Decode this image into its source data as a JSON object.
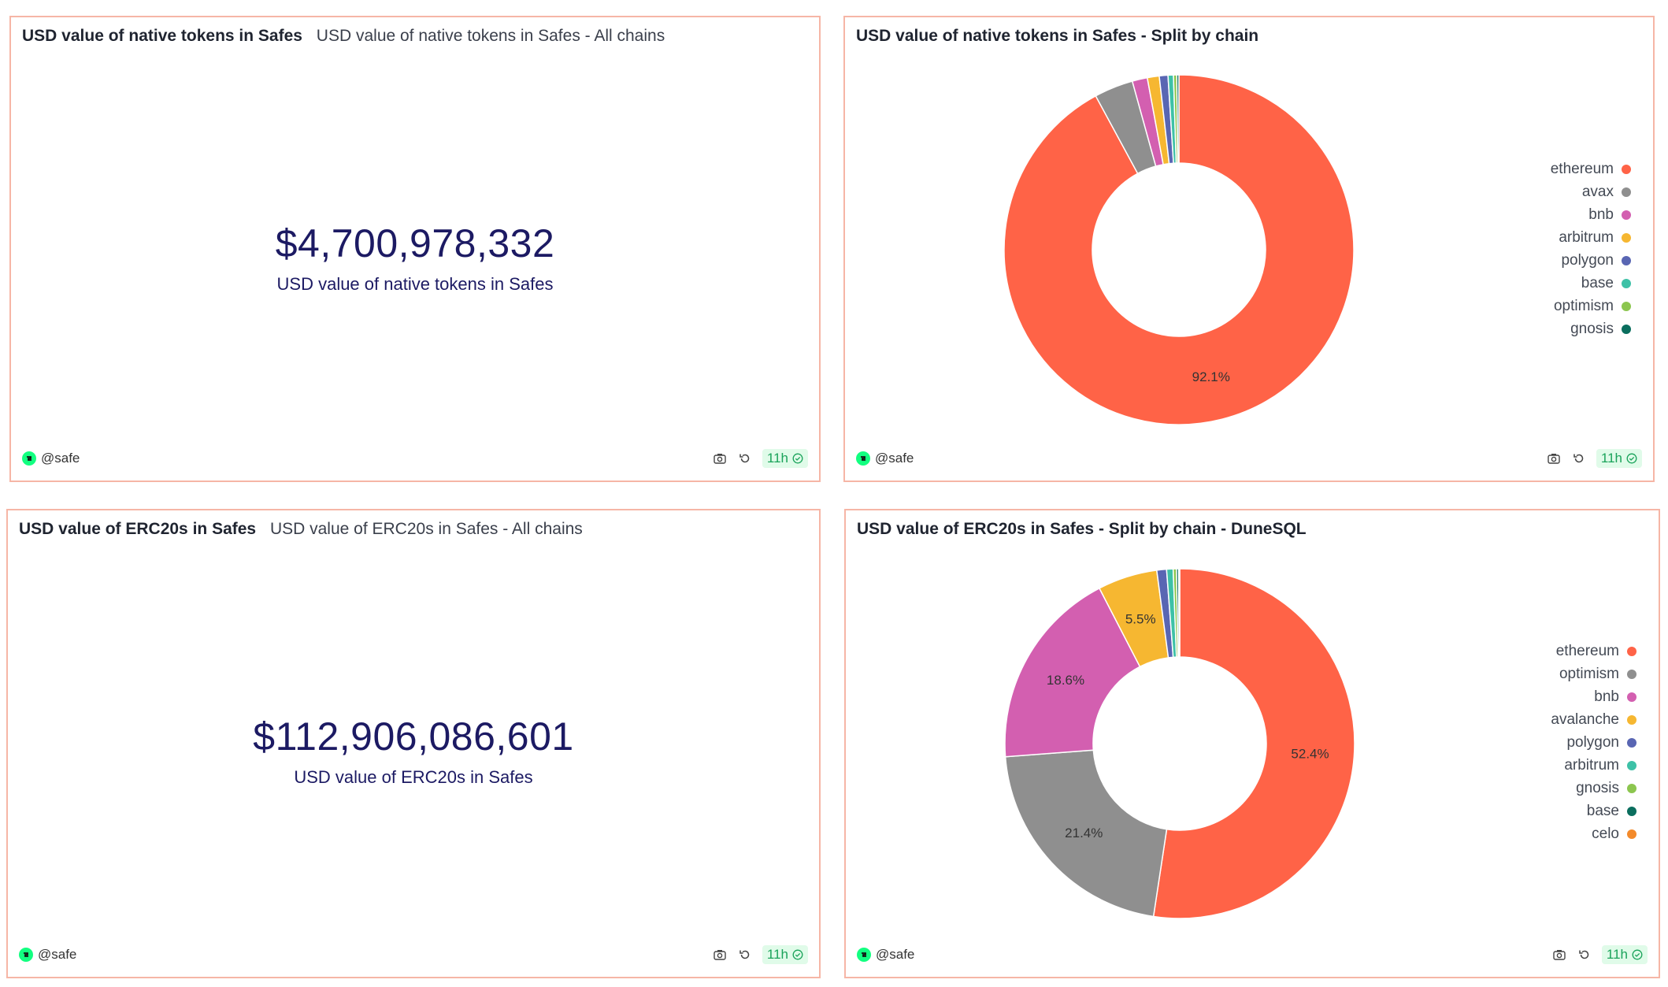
{
  "owner": "@safe",
  "freshness": "11h",
  "panels": {
    "native_counter": {
      "title": "USD value of native tokens in Safes",
      "subtitle": "USD value of native tokens in Safes - All chains",
      "value": "$4,700,978,332",
      "label": "USD value of native tokens in Safes"
    },
    "native_pie": {
      "title": "USD value of native tokens in Safes - Split by chain"
    },
    "erc20_counter": {
      "title": "USD value of ERC20s in Safes",
      "subtitle": "USD value of ERC20s in Safes - All chains",
      "value": "$112,906,086,601",
      "label": "USD value of ERC20s in Safes"
    },
    "erc20_pie": {
      "title": "USD value of ERC20s in Safes - Split by chain - DuneSQL"
    }
  },
  "colors": {
    "ethereum": "#ff6347",
    "gray": "#8f8f8f",
    "pink": "#d35fb0",
    "amber": "#f6b731",
    "indigo": "#5966b3",
    "teal": "#3ec1a7",
    "lime": "#8cc64f",
    "darkteal": "#0b6e5e",
    "orange": "#f38a2b",
    "border": "#f6b6a6",
    "counter_text": "#1c1a63",
    "fresh": "#1aa35a"
  },
  "chart_data": [
    {
      "type": "pie",
      "donut": true,
      "title": "USD value of native tokens in Safes - Split by chain",
      "legend_position": "right",
      "slices": [
        {
          "name": "ethereum",
          "value": 92.1,
          "color": "#ff6347",
          "label": "92.1%"
        },
        {
          "name": "avax",
          "value": 3.6,
          "color": "#8f8f8f",
          "label": ""
        },
        {
          "name": "bnb",
          "value": 1.4,
          "color": "#d35fb0",
          "label": ""
        },
        {
          "name": "arbitrum",
          "value": 1.1,
          "color": "#f6b731",
          "label": ""
        },
        {
          "name": "polygon",
          "value": 0.8,
          "color": "#5966b3",
          "label": ""
        },
        {
          "name": "base",
          "value": 0.5,
          "color": "#3ec1a7",
          "label": ""
        },
        {
          "name": "optimism",
          "value": 0.3,
          "color": "#8cc64f",
          "label": ""
        },
        {
          "name": "gnosis",
          "value": 0.2,
          "color": "#0b6e5e",
          "label": ""
        }
      ]
    },
    {
      "type": "pie",
      "donut": true,
      "title": "USD value of ERC20s in Safes - Split by chain - DuneSQL",
      "legend_position": "right",
      "slices": [
        {
          "name": "ethereum",
          "value": 52.4,
          "color": "#ff6347",
          "label": "52.4%"
        },
        {
          "name": "optimism",
          "value": 21.4,
          "color": "#8f8f8f",
          "label": "21.4%"
        },
        {
          "name": "bnb",
          "value": 18.6,
          "color": "#d35fb0",
          "label": "18.6%"
        },
        {
          "name": "avalanche",
          "value": 5.5,
          "color": "#f6b731",
          "label": "5.5%"
        },
        {
          "name": "polygon",
          "value": 0.9,
          "color": "#5966b3",
          "label": ""
        },
        {
          "name": "arbitrum",
          "value": 0.6,
          "color": "#3ec1a7",
          "label": ""
        },
        {
          "name": "gnosis",
          "value": 0.3,
          "color": "#8cc64f",
          "label": ""
        },
        {
          "name": "base",
          "value": 0.2,
          "color": "#0b6e5e",
          "label": ""
        },
        {
          "name": "celo",
          "value": 0.1,
          "color": "#f38a2b",
          "label": ""
        }
      ]
    }
  ]
}
